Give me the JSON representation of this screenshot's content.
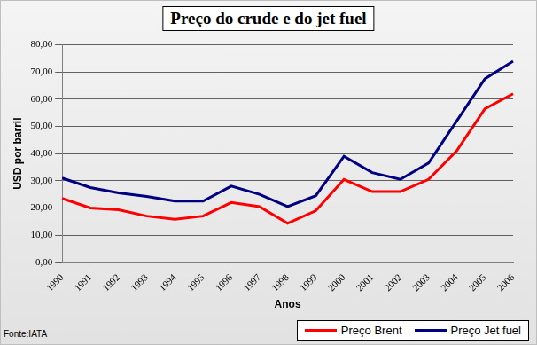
{
  "chart_data": {
    "type": "line",
    "title": "Preço do crude e do jet fuel",
    "x_label": "Anos",
    "y_label": "USD por barril",
    "source": "Fonte:IATA",
    "categories": [
      "1990",
      "1991",
      "1992",
      "1993",
      "1994",
      "1995",
      "1996",
      "1997",
      "1998",
      "1999",
      "2000",
      "2001",
      "2002",
      "2003",
      "2004",
      "2005",
      "2006"
    ],
    "series": [
      {
        "name": "Preço Brent",
        "color": "#ff0000",
        "values": [
          23.5,
          20,
          19.3,
          17,
          15.8,
          17,
          22,
          20.5,
          14.3,
          19,
          30.5,
          26,
          26,
          30.5,
          41,
          56.5,
          62
        ]
      },
      {
        "name": "Preço Jet fuel",
        "color": "#000080",
        "values": [
          31,
          27.5,
          25.5,
          24.2,
          22.5,
          22.5,
          28,
          25,
          20.5,
          24.5,
          39,
          33,
          30.5,
          36.5,
          52,
          67.5,
          74
        ]
      }
    ],
    "ylim": [
      0,
      80
    ],
    "yticks": [
      {
        "value": 0,
        "label": "0,00"
      },
      {
        "value": 10,
        "label": "10,00"
      },
      {
        "value": 20,
        "label": "20,00"
      },
      {
        "value": 30,
        "label": "30,00"
      },
      {
        "value": 40,
        "label": "40,00"
      },
      {
        "value": 50,
        "label": "50,00"
      },
      {
        "value": 60,
        "label": "60,00"
      },
      {
        "value": 70,
        "label": "70,00"
      },
      {
        "value": 80,
        "label": "80,00"
      }
    ],
    "grid": true,
    "legend": "bottom"
  }
}
